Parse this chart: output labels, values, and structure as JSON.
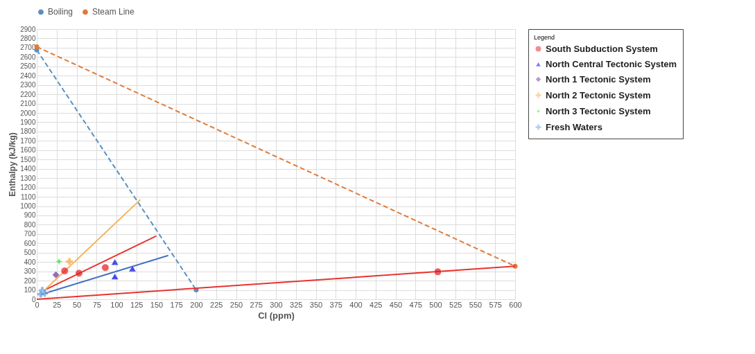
{
  "chart_data": {
    "type": "scatter",
    "xlabel": "Cl (ppm)",
    "ylabel": "Enthalpy (kJ/kg)",
    "legend_title": "Legend",
    "legend": "right",
    "grid": true,
    "xlim": [
      0,
      600
    ],
    "xticks": [
      0,
      25,
      50,
      75,
      100,
      125,
      150,
      175,
      200,
      225,
      250,
      275,
      300,
      325,
      350,
      375,
      400,
      425,
      450,
      475,
      500,
      525,
      550,
      575,
      600
    ],
    "ylim": [
      0,
      2900
    ],
    "yticks": [
      0,
      100,
      200,
      300,
      400,
      500,
      600,
      700,
      800,
      900,
      1000,
      1100,
      1200,
      1300,
      1400,
      1500,
      1600,
      1700,
      1800,
      1900,
      2000,
      2100,
      2200,
      2300,
      2400,
      2500,
      2600,
      2700,
      2800,
      2900
    ],
    "series": [
      {
        "name": "Boiling",
        "type": "line",
        "line_style": "dashed",
        "marker": "circle",
        "color": "#5b8fbf",
        "x": [
          0,
          200
        ],
        "values": [
          2676,
          100
        ]
      },
      {
        "name": "Steam Line",
        "type": "line",
        "line_style": "dashed",
        "marker": "circle",
        "color": "#e07b39",
        "x": [
          0,
          600
        ],
        "values": [
          2710,
          355
        ]
      },
      {
        "type": "line",
        "line_style": "solid",
        "marker": "none",
        "color": "#e8322f",
        "x": [
          0,
          600
        ],
        "values": [
          0,
          355
        ]
      },
      {
        "type": "line",
        "line_style": "solid",
        "marker": "none",
        "color": "#e8322f",
        "x": [
          10,
          150
        ],
        "values": [
          100,
          680
        ]
      },
      {
        "type": "line",
        "line_style": "solid",
        "marker": "none",
        "color": "#4472c4",
        "x": [
          5,
          165
        ],
        "values": [
          50,
          470
        ]
      },
      {
        "type": "line",
        "line_style": "solid",
        "marker": "none",
        "color": "#f4b35a",
        "x": [
          10,
          130
        ],
        "values": [
          100,
          1070
        ]
      },
      {
        "name": "South Subduction System",
        "marker": "circle",
        "color": "#e3191c",
        "x": [
          35,
          53,
          86,
          503
        ],
        "values": [
          305,
          280,
          340,
          295
        ]
      },
      {
        "name": "North Central Tectonic System",
        "marker": "triangle",
        "color": "#0000e0",
        "x": [
          98,
          98,
          120
        ],
        "values": [
          400,
          245,
          330
        ]
      },
      {
        "name": "North 1   Tectonic System",
        "marker": "diamond",
        "color": "#7030a0",
        "x": [
          24
        ],
        "values": [
          262
        ]
      },
      {
        "name": "North 2    Tectonic System",
        "marker": "cross",
        "color": "#f4a742",
        "x": [
          41
        ],
        "values": [
          405
        ]
      },
      {
        "name": "North  3  Tectonic System",
        "marker": "star",
        "color": "#22dd22",
        "x": [
          28
        ],
        "values": [
          405
        ]
      },
      {
        "name": "Fresh  Waters",
        "marker": "cross",
        "color": "#5b9bd5",
        "x": [
          7,
          10,
          5
        ],
        "values": [
          95,
          65,
          55
        ]
      }
    ]
  }
}
